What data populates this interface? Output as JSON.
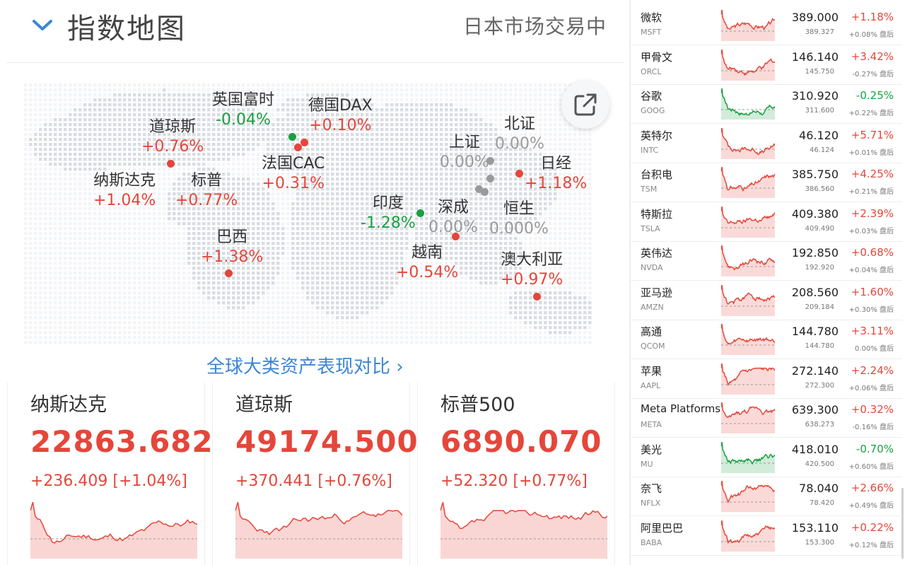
{
  "header": {
    "title": "指数地图",
    "status": "日本市场交易中"
  },
  "map_indices": [
    {
      "name": "英国富时",
      "change": "-0.04%",
      "color": "green"
    },
    {
      "name": "德国DAX",
      "change": "+0.10%",
      "color": "red"
    },
    {
      "name": "道琼斯",
      "change": "+0.76%",
      "color": "red"
    },
    {
      "name": "北证",
      "change": "0.00%",
      "color": "gray"
    },
    {
      "name": "上证",
      "change": "0.00%",
      "color": "gray"
    },
    {
      "name": "法国CAC",
      "change": "+0.31%",
      "color": "red"
    },
    {
      "name": "日经",
      "change": "+1.18%",
      "color": "red"
    },
    {
      "name": "纳斯达克",
      "change": "+1.04%",
      "color": "red"
    },
    {
      "name": "标普",
      "change": "+0.77%",
      "color": "red"
    },
    {
      "name": "印度",
      "change": "-1.28%",
      "color": "green"
    },
    {
      "name": "深成",
      "change": "0.00%",
      "color": "gray"
    },
    {
      "name": "恒生",
      "change": "0.000%",
      "color": "gray"
    },
    {
      "name": "巴西",
      "change": "+1.38%",
      "color": "red"
    },
    {
      "name": "越南",
      "change": "+0.54%",
      "color": "red"
    },
    {
      "name": "澳大利亚",
      "change": "+0.97%",
      "color": "red"
    }
  ],
  "compare_link": "全球大类资产表现对比 ›",
  "cards": [
    {
      "name": "纳斯达克",
      "value": "22863.682",
      "change": "+236.409 [+1.04%]"
    },
    {
      "name": "道琼斯",
      "value": "49174.500",
      "change": "+370.441 [+0.76%]"
    },
    {
      "name": "标普500",
      "value": "6890.070",
      "change": "+52.320 [+0.77%]"
    }
  ],
  "stocks": [
    {
      "name": "微软",
      "ticker": "MSFT",
      "price": "389.000",
      "change": "+1.18%",
      "ah_price": "389.327",
      "ah_change": "+0.08% 盘后",
      "dir": "up"
    },
    {
      "name": "甲骨文",
      "ticker": "ORCL",
      "price": "146.140",
      "change": "+3.42%",
      "ah_price": "145.750",
      "ah_change": "-0.27% 盘后",
      "dir": "up"
    },
    {
      "name": "谷歌",
      "ticker": "GOOG",
      "price": "310.920",
      "change": "-0.25%",
      "ah_price": "311.600",
      "ah_change": "+0.22% 盘后",
      "dir": "down"
    },
    {
      "name": "英特尔",
      "ticker": "INTC",
      "price": "46.120",
      "change": "+5.71%",
      "ah_price": "46.124",
      "ah_change": "+0.01% 盘后",
      "dir": "up"
    },
    {
      "name": "台积电",
      "ticker": "TSM",
      "price": "385.750",
      "change": "+4.25%",
      "ah_price": "386.560",
      "ah_change": "+0.21% 盘后",
      "dir": "up"
    },
    {
      "name": "特斯拉",
      "ticker": "TSLA",
      "price": "409.380",
      "change": "+2.39%",
      "ah_price": "409.490",
      "ah_change": "+0.03% 盘后",
      "dir": "up"
    },
    {
      "name": "英伟达",
      "ticker": "NVDA",
      "price": "192.850",
      "change": "+0.68%",
      "ah_price": "192.920",
      "ah_change": "+0.04% 盘后",
      "dir": "up"
    },
    {
      "name": "亚马逊",
      "ticker": "AMZN",
      "price": "208.560",
      "change": "+1.60%",
      "ah_price": "209.184",
      "ah_change": "+0.30% 盘后",
      "dir": "up"
    },
    {
      "name": "高通",
      "ticker": "QCOM",
      "price": "144.780",
      "change": "+3.11%",
      "ah_price": "144.780",
      "ah_change": "0.00% 盘后",
      "dir": "up"
    },
    {
      "name": "苹果",
      "ticker": "AAPL",
      "price": "272.140",
      "change": "+2.24%",
      "ah_price": "272.300",
      "ah_change": "+0.06% 盘后",
      "dir": "up"
    },
    {
      "name": "Meta Platforms",
      "ticker": "META",
      "price": "639.300",
      "change": "+0.32%",
      "ah_price": "638.273",
      "ah_change": "-0.16% 盘后",
      "dir": "up"
    },
    {
      "name": "美光",
      "ticker": "MU",
      "price": "418.010",
      "change": "-0.70%",
      "ah_price": "420.500",
      "ah_change": "+0.60% 盘后",
      "dir": "down"
    },
    {
      "name": "奈飞",
      "ticker": "NFLX",
      "price": "78.040",
      "change": "+2.66%",
      "ah_price": "78.420",
      "ah_change": "+0.49% 盘后",
      "dir": "up"
    },
    {
      "name": "阿里巴巴",
      "ticker": "BABA",
      "price": "153.110",
      "change": "+0.22%",
      "ah_price": "153.300",
      "ah_change": "+0.12% 盘后",
      "dir": "up"
    }
  ],
  "colors": {
    "up": "#e5463a",
    "down": "#18a040",
    "flat": "#9a9a9a",
    "link": "#3c86d6"
  },
  "icons": {
    "collapse": "chevron-down-icon",
    "share": "share-external-icon",
    "compare": "chevron-right-icon"
  }
}
